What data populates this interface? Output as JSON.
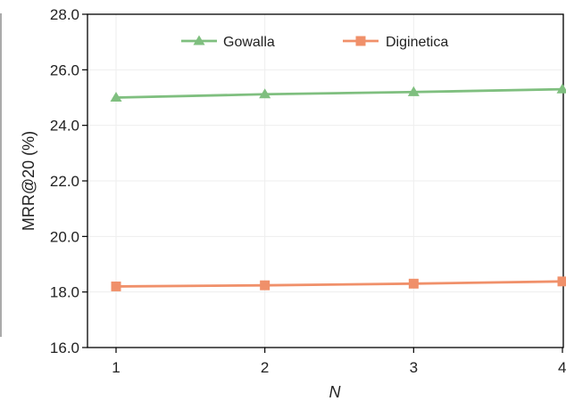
{
  "chart_data": {
    "type": "line",
    "x": [
      1,
      2,
      3,
      4
    ],
    "x_tick_labels": [
      "1",
      "2",
      "3",
      "4"
    ],
    "y_tick_labels": [
      "16.0",
      "18.0",
      "20.0",
      "22.0",
      "24.0",
      "26.0",
      "28.0"
    ],
    "xlabel": "N",
    "ylabel": "MRR@20 (%)",
    "xlim": [
      1,
      4
    ],
    "ylim": [
      16.0,
      28.0
    ],
    "grid": true,
    "legend_position": "top",
    "series": [
      {
        "name": "Gowalla",
        "values": [
          25.0,
          25.12,
          25.2,
          25.3
        ],
        "color": "#7fbf7f",
        "marker": "triangle"
      },
      {
        "name": "Diginetica",
        "values": [
          18.2,
          18.24,
          18.3,
          18.38
        ],
        "color": "#f0906a",
        "marker": "square"
      }
    ]
  }
}
